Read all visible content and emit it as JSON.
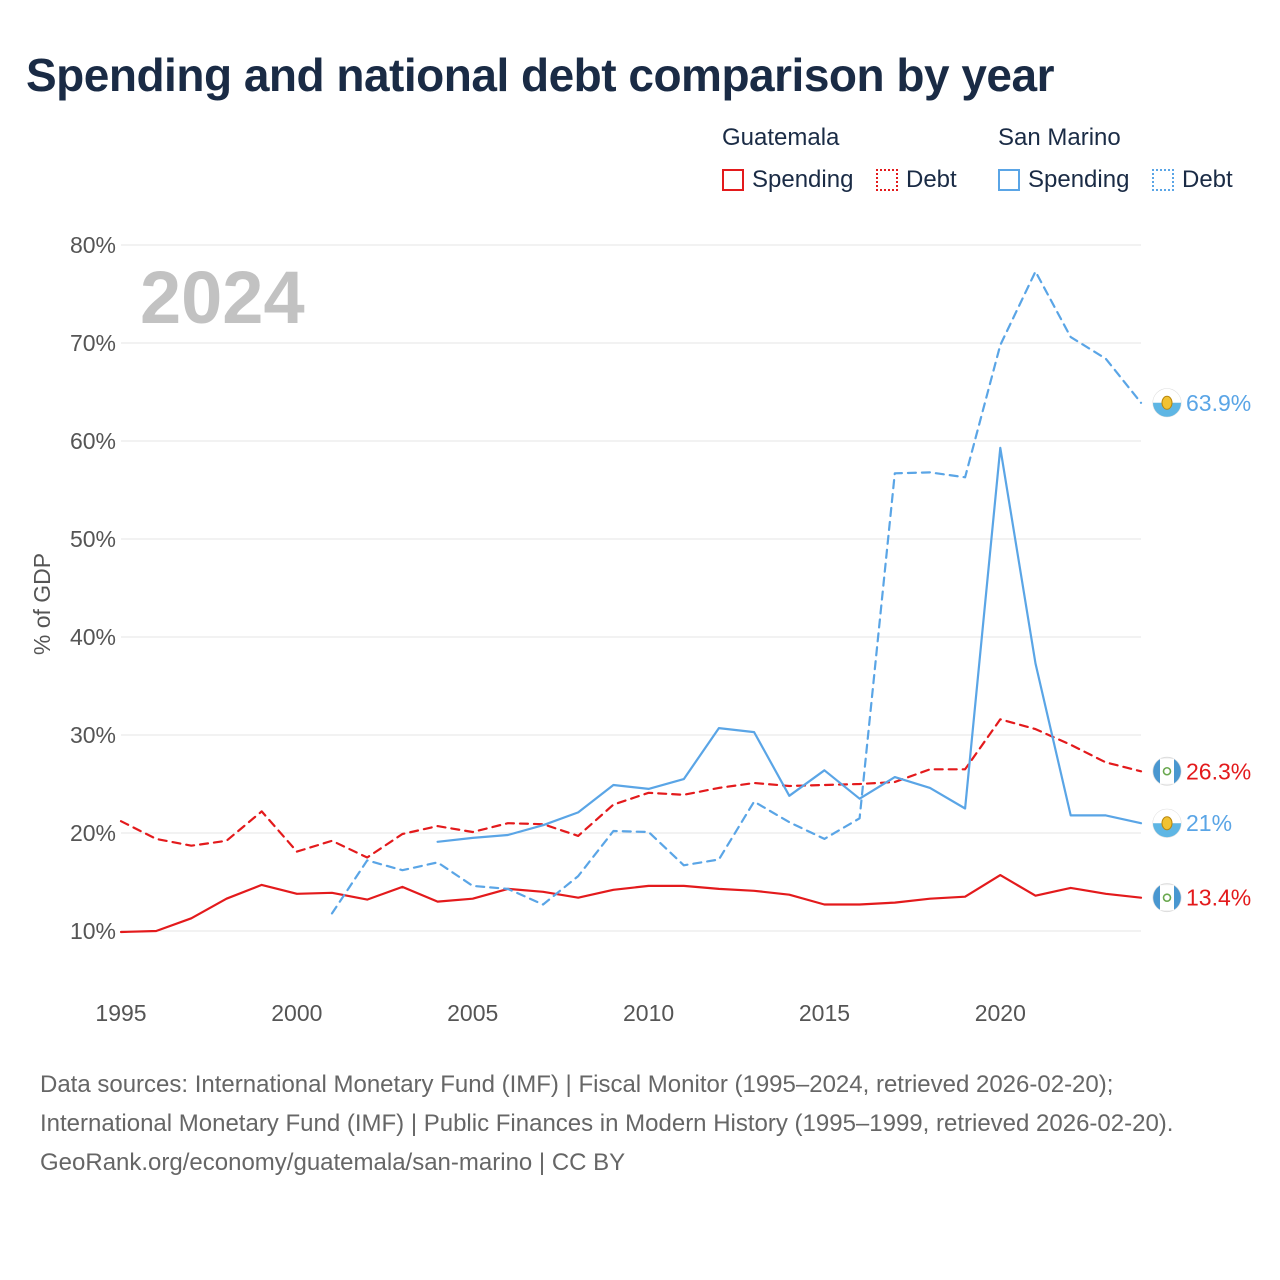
{
  "title": "Spending and national debt comparison by year",
  "year_badge": "2024",
  "legend": {
    "groups": [
      {
        "country": "Guatemala",
        "color": "#e31a1c",
        "items": [
          {
            "label": "Spending",
            "style": "solid"
          },
          {
            "label": "Debt",
            "style": "dotted"
          }
        ]
      },
      {
        "country": "San Marino",
        "color": "#5aa5e6",
        "items": [
          {
            "label": "Spending",
            "style": "solid"
          },
          {
            "label": "Debt",
            "style": "dotted"
          }
        ]
      }
    ]
  },
  "chart_data": {
    "type": "line",
    "ylabel": "% of GDP",
    "xlabel": "",
    "xlim": [
      1995,
      2024
    ],
    "ylim": [
      5,
      80
    ],
    "x_ticks": [
      1995,
      2000,
      2005,
      2010,
      2015,
      2020
    ],
    "y_ticks": [
      10,
      20,
      30,
      40,
      50,
      60,
      70,
      80
    ],
    "y_tick_labels": [
      "10%",
      "20%",
      "30%",
      "40%",
      "50%",
      "60%",
      "70%",
      "80%"
    ],
    "series": [
      {
        "name": "Guatemala Debt",
        "country": "Guatemala",
        "measure": "Debt",
        "color": "#e31a1c",
        "dash": "dashed",
        "end_label": "26.3%",
        "flag": "guatemala",
        "x": [
          1995,
          1996,
          1997,
          1998,
          1999,
          2000,
          2001,
          2002,
          2003,
          2004,
          2005,
          2006,
          2007,
          2008,
          2009,
          2010,
          2011,
          2012,
          2013,
          2014,
          2015,
          2016,
          2017,
          2018,
          2019,
          2020,
          2021,
          2022,
          2023,
          2024
        ],
        "values": [
          21.2,
          19.4,
          18.7,
          19.2,
          22.2,
          18.1,
          19.2,
          17.5,
          19.9,
          20.7,
          20.1,
          21.0,
          20.9,
          19.7,
          22.9,
          24.1,
          23.9,
          24.6,
          25.1,
          24.8,
          24.9,
          25.0,
          25.2,
          26.5,
          26.5,
          31.6,
          30.6,
          29.0,
          27.2,
          26.3
        ]
      },
      {
        "name": "Guatemala Spending",
        "country": "Guatemala",
        "measure": "Spending",
        "color": "#e31a1c",
        "dash": "solid",
        "end_label": "13.4%",
        "flag": "guatemala",
        "x": [
          1995,
          1996,
          1997,
          1998,
          1999,
          2000,
          2001,
          2002,
          2003,
          2004,
          2005,
          2006,
          2007,
          2008,
          2009,
          2010,
          2011,
          2012,
          2013,
          2014,
          2015,
          2016,
          2017,
          2018,
          2019,
          2020,
          2021,
          2022,
          2023,
          2024
        ],
        "values": [
          9.9,
          10.0,
          11.3,
          13.3,
          14.7,
          13.8,
          13.9,
          13.2,
          14.5,
          13.0,
          13.3,
          14.3,
          14.0,
          13.4,
          14.2,
          14.6,
          14.6,
          14.3,
          14.1,
          13.7,
          12.7,
          12.7,
          12.9,
          13.3,
          13.5,
          15.7,
          13.6,
          14.4,
          13.8,
          13.4
        ]
      },
      {
        "name": "San Marino Debt",
        "country": "San Marino",
        "measure": "Debt",
        "color": "#5aa5e6",
        "dash": "dashed",
        "end_label": "63.9%",
        "flag": "san-marino",
        "x": [
          2001,
          2002,
          2003,
          2004,
          2005,
          2006,
          2007,
          2008,
          2009,
          2010,
          2011,
          2012,
          2013,
          2014,
          2015,
          2016,
          2017,
          2018,
          2019,
          2020,
          2021,
          2022,
          2023,
          2024
        ],
        "values": [
          11.8,
          17.2,
          16.2,
          17.0,
          14.6,
          14.3,
          12.7,
          15.6,
          20.2,
          20.1,
          16.7,
          17.3,
          23.2,
          21.1,
          19.4,
          21.5,
          56.7,
          56.8,
          56.3,
          69.8,
          77.3,
          70.6,
          68.4,
          63.9
        ]
      },
      {
        "name": "San Marino Spending",
        "country": "San Marino",
        "measure": "Spending",
        "color": "#5aa5e6",
        "dash": "solid",
        "end_label": "21%",
        "flag": "san-marino",
        "x": [
          2004,
          2005,
          2006,
          2007,
          2008,
          2009,
          2010,
          2011,
          2012,
          2013,
          2014,
          2015,
          2016,
          2017,
          2018,
          2019,
          2020,
          2021,
          2022,
          2023,
          2024
        ],
        "values": [
          19.1,
          19.5,
          19.8,
          20.8,
          22.1,
          24.9,
          24.5,
          25.5,
          30.7,
          30.3,
          23.8,
          26.4,
          23.5,
          25.7,
          24.6,
          22.5,
          59.3,
          37.3,
          21.8,
          21.8,
          21.0
        ]
      }
    ]
  },
  "footer": {
    "sources": "Data sources: International Monetary Fund (IMF) | Fiscal Monitor (1995–2024, retrieved 2026-02-20); International Monetary Fund (IMF) | Public Finances in Modern History (1995–1999, retrieved 2026-02-20).",
    "attribution": "GeoRank.org/economy/guatemala/san-marino | CC BY"
  }
}
